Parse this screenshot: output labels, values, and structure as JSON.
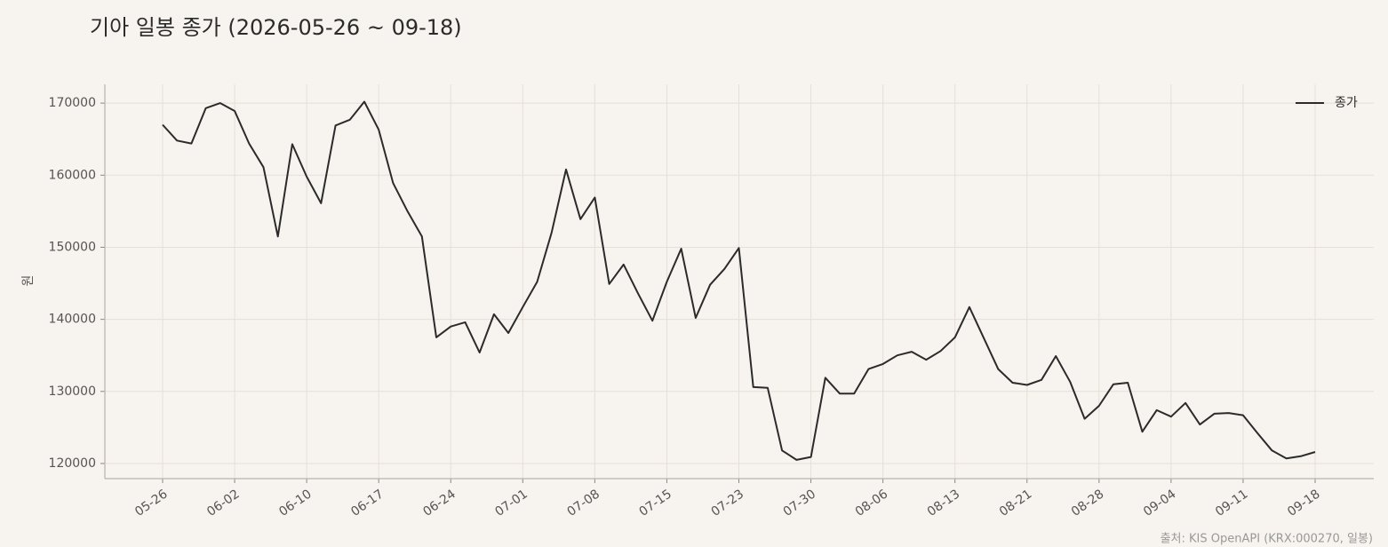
{
  "chart_data": {
    "type": "line",
    "title": "기아 일봉 종가 (2026-05-26 ~ 09-18)",
    "y_label": "원",
    "source": "출처: KIS OpenAPI (KRX:000270, 일봉)",
    "categories": [
      "05-26",
      null,
      null,
      null,
      null,
      "06-02",
      null,
      null,
      null,
      null,
      "06-10",
      null,
      null,
      null,
      null,
      "06-17",
      null,
      null,
      null,
      null,
      "06-24",
      null,
      null,
      null,
      null,
      "07-01",
      null,
      null,
      null,
      null,
      "07-08",
      null,
      null,
      null,
      null,
      "07-15",
      null,
      null,
      null,
      null,
      "07-23",
      null,
      null,
      null,
      null,
      "07-30",
      null,
      null,
      null,
      null,
      "08-06",
      null,
      null,
      null,
      null,
      "08-13",
      null,
      null,
      null,
      null,
      "08-21",
      null,
      null,
      null,
      null,
      "08-28",
      null,
      null,
      null,
      null,
      "09-04",
      null,
      null,
      null,
      null,
      "09-11",
      null,
      null,
      null,
      null,
      "09-18"
    ],
    "series": [
      {
        "name": "종가",
        "color": "#2b2b2b",
        "values": [
          167000,
          164800,
          164400,
          169300,
          170000,
          168900,
          164400,
          161100,
          151500,
          164300,
          159800,
          156100,
          166900,
          167700,
          170200,
          166300,
          158900,
          155000,
          151500,
          137500,
          139000,
          139600,
          135400,
          140700,
          138100,
          141700,
          145200,
          152000,
          160800,
          153900,
          156900,
          144900,
          147600,
          143600,
          139800,
          145200,
          149800,
          140200,
          144800,
          147000,
          149900,
          130600,
          130500,
          121800,
          120500,
          120900,
          131900,
          129700,
          129700,
          133100,
          133800,
          135000,
          135500,
          134400,
          135600,
          137500,
          141700,
          137400,
          133100,
          131200,
          130900,
          131600,
          134900,
          131300,
          126200,
          128000,
          131000,
          131200,
          124400,
          127400,
          126500,
          128400,
          125400,
          126900,
          127000,
          126700,
          124200,
          121800,
          120700,
          121000,
          121600
        ]
      }
    ],
    "ylim": [
      117900,
      172600
    ],
    "yticks": [
      120000,
      130000,
      140000,
      150000,
      160000,
      170000
    ],
    "grid": true,
    "legend": "upper right"
  }
}
